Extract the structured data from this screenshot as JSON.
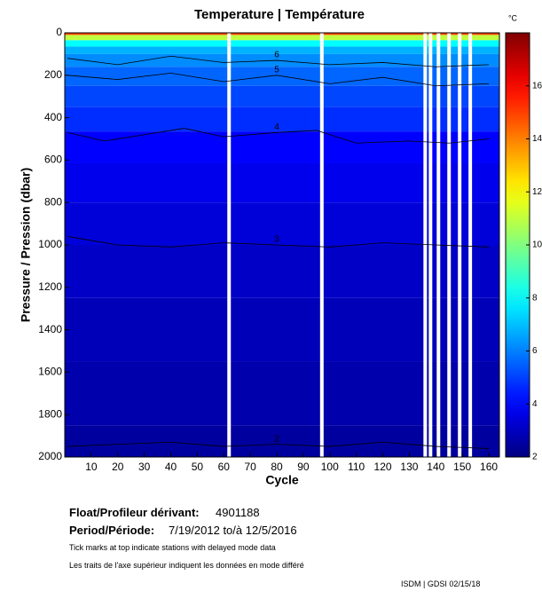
{
  "chart_data": {
    "type": "contour",
    "title": "Temperature | Température",
    "xlabel": "Cycle",
    "ylabel": "Pressure / Pression (dbar)",
    "xlim": [
      0,
      164
    ],
    "xticks": [
      10,
      20,
      30,
      40,
      50,
      60,
      70,
      80,
      90,
      100,
      110,
      120,
      130,
      140,
      150,
      160
    ],
    "ylim": [
      0,
      2000
    ],
    "yticks": [
      0,
      200,
      400,
      600,
      800,
      1000,
      1200,
      1400,
      1600,
      1800,
      2000
    ],
    "y_inverted": true,
    "colorbar_unit": "°C",
    "clim": [
      2,
      18
    ],
    "cticks": [
      2,
      4,
      6,
      8,
      10,
      12,
      14,
      16
    ],
    "profile": {
      "pressure": [
        0,
        20,
        50,
        80,
        120,
        200,
        300,
        400,
        530,
        700,
        900,
        1100,
        1400,
        1700,
        2000
      ],
      "temperature": [
        15,
        11,
        8,
        6.8,
        6.2,
        5.6,
        5.1,
        4.7,
        4.0,
        3.7,
        3.4,
        3.1,
        2.9,
        2.7,
        2.5
      ]
    },
    "gap_cycles": [
      62,
      97,
      136,
      138,
      141,
      145,
      149,
      153
    ],
    "series": [
      {
        "name": "6",
        "x": [
          1,
          20,
          40,
          60,
          80,
          100,
          120,
          140,
          160
        ],
        "values": [
          120,
          150,
          110,
          140,
          130,
          150,
          140,
          160,
          150
        ]
      },
      {
        "name": "5",
        "x": [
          1,
          20,
          40,
          60,
          80,
          100,
          120,
          140,
          160
        ],
        "values": [
          200,
          220,
          190,
          230,
          200,
          240,
          210,
          250,
          240
        ]
      },
      {
        "name": "4",
        "x": [
          1,
          15,
          30,
          45,
          60,
          80,
          95,
          110,
          130,
          145,
          160
        ],
        "values": [
          470,
          510,
          480,
          450,
          490,
          470,
          460,
          520,
          510,
          520,
          500
        ]
      },
      {
        "name": "3",
        "x": [
          1,
          20,
          40,
          60,
          80,
          100,
          120,
          140,
          160
        ],
        "values": [
          960,
          1000,
          1010,
          990,
          1000,
          1010,
          990,
          1000,
          1010
        ]
      },
      {
        "name": "2",
        "x": [
          1,
          20,
          40,
          60,
          80,
          100,
          120,
          140,
          160
        ],
        "values": [
          1950,
          1940,
          1930,
          1950,
          1940,
          1950,
          1930,
          1950,
          1960
        ]
      }
    ]
  },
  "footer": {
    "float_label": "Float/Profileur dérivant:",
    "float_id": "4901188",
    "period_label": "Period/Période:",
    "period": "7/19/2012  to/à  12/5/2016",
    "note_en": "Tick marks at top indicate stations with delayed mode data",
    "note_fr": "Les traits de l'axe supérieur indiquent les données en mode différé",
    "credit": "ISDM | GDSI  02/15/18"
  }
}
